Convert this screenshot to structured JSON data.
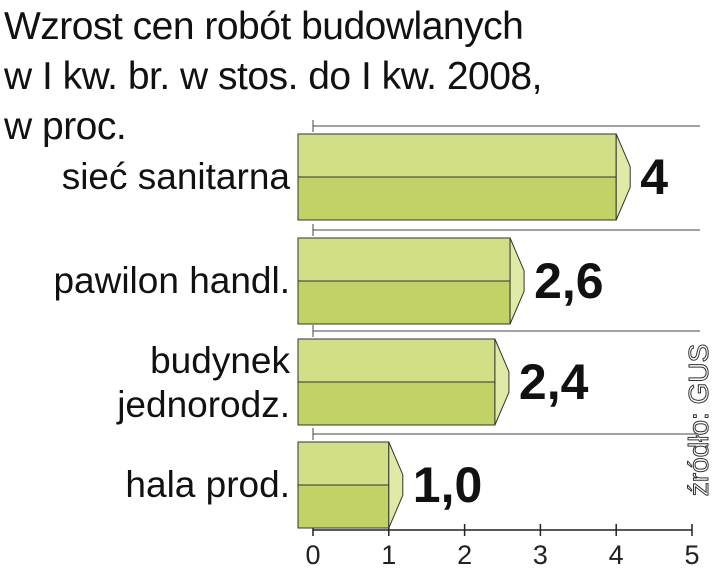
{
  "chart_data": {
    "type": "bar",
    "orientation": "horizontal",
    "title": "Wzrost cen robót budowlanych\nw I kw. br. w stos. do I kw. 2008,\nw proc.",
    "categories": [
      "sieć sanitarna",
      "pawilon handl.",
      "budynek\njednorodz.",
      "hala prod."
    ],
    "values": [
      4,
      2.6,
      2.4,
      1.0
    ],
    "value_labels": [
      "4",
      "2,6",
      "2,4",
      "1,0"
    ],
    "color": "#c3d266",
    "xlim": [
      0,
      5
    ],
    "xticks": [
      0,
      1,
      2,
      3,
      4,
      5
    ],
    "source": "źródło: GUS"
  }
}
